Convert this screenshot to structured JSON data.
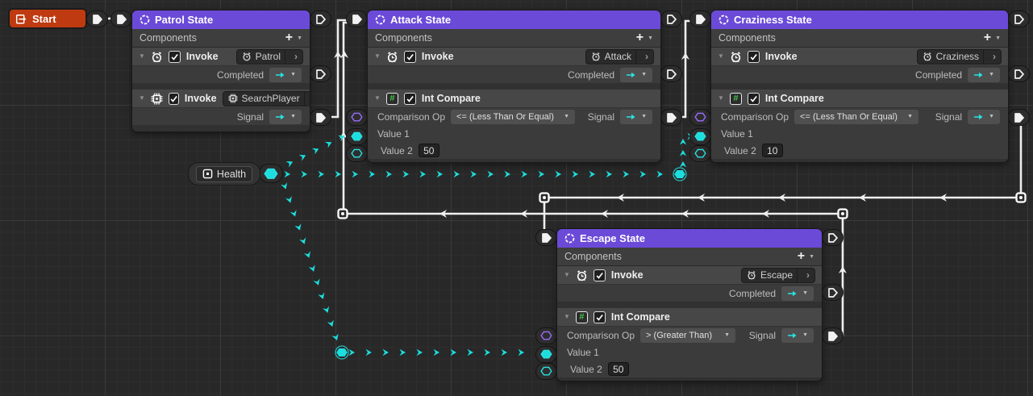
{
  "glyphs": {
    "plus": "+",
    "caret": "▼",
    "chevron": "›",
    "collapse": "▼"
  },
  "start_node": {
    "title": "Start"
  },
  "health_node": {
    "label": "Health"
  },
  "patrol": {
    "title": "Patrol State",
    "components_label": "Components",
    "invoke1_label": "Invoke",
    "invoke1_badge": "Patrol",
    "completed_label": "Completed",
    "invoke2_label": "Invoke",
    "invoke2_badge": "SearchPlayer",
    "signal_label": "Signal"
  },
  "attack": {
    "title": "Attack State",
    "components_label": "Components",
    "invoke_label": "Invoke",
    "invoke_badge": "Attack",
    "completed_label": "Completed",
    "int_compare_label": "Int Compare",
    "comparison_op_label": "Comparison Op",
    "comparison_op_value": "<= (Less Than Or Equal)",
    "signal_label": "Signal",
    "value1_label": "Value 1",
    "value2_label": "Value 2",
    "value2_value": "50"
  },
  "craziness": {
    "title": "Craziness State",
    "components_label": "Components",
    "invoke_label": "Invoke",
    "invoke_badge": "Craziness",
    "completed_label": "Completed",
    "int_compare_label": "Int Compare",
    "comparison_op_label": "Comparison Op",
    "comparison_op_value": "<= (Less Than Or Equal)",
    "signal_label": "Signal",
    "value1_label": "Value 1",
    "value2_label": "Value 2",
    "value2_value": "10"
  },
  "escape": {
    "title": "Escape State",
    "components_label": "Components",
    "invoke_label": "Invoke",
    "invoke_badge": "Escape",
    "completed_label": "Completed",
    "int_compare_label": "Int Compare",
    "comparison_op_label": "Comparison Op",
    "comparison_op_value": "> (Greater Than)",
    "signal_label": "Signal",
    "value1_label": "Value 1",
    "value2_label": "Value 2",
    "value2_value": "50"
  },
  "colors": {
    "state_header": "#6b4ad8",
    "start_orange": "#bf3a10",
    "flow_wire": "#f0f0f0",
    "data_wire_cyan": "#1cdede",
    "enum_port_purple": "#9b6cff",
    "int_icon_green": "#43c24a"
  }
}
